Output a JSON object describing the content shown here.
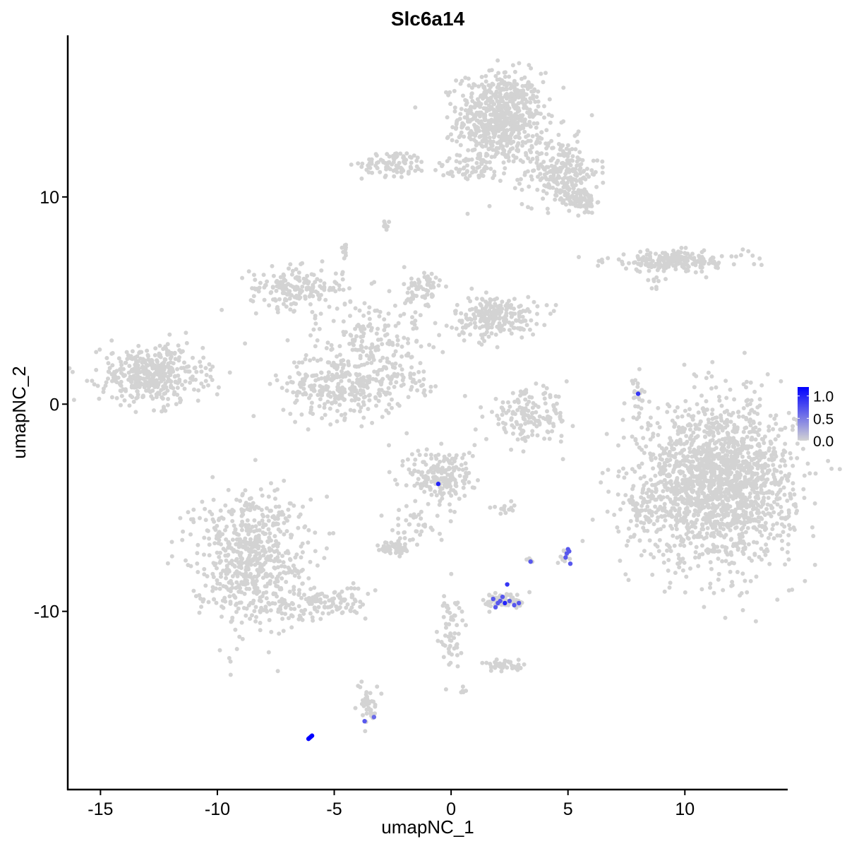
{
  "chart_data": {
    "type": "scatter",
    "title": "Slc6a14",
    "xlabel": "umapNC_1",
    "ylabel": "umapNC_2",
    "xlim": [
      -16.4,
      14.4
    ],
    "ylim": [
      -18.6,
      17.8
    ],
    "xticks": [
      -15,
      -10,
      -5,
      0,
      5,
      10
    ],
    "xtick_labels": [
      "-15",
      "-10",
      "-5",
      "0",
      "5",
      "10"
    ],
    "yticks": [
      -10,
      0,
      10
    ],
    "ytick_labels": [
      "-10",
      "0",
      "10"
    ],
    "grid": false,
    "legend": {
      "placement": "right",
      "type": "colorbar",
      "range": [
        0,
        1.2
      ],
      "ticks": [
        0,
        0.5,
        1.0
      ],
      "tick_labels": [
        "0.0",
        "0.5",
        "1.0"
      ],
      "low_color": "#d3d3d3",
      "high_color": "#0000ff"
    },
    "point_color_default": "#d3d3d3",
    "clusters": [
      {
        "center": [
          2.1,
          13.8
        ],
        "spread": [
          0.9,
          1.1
        ],
        "count": 700,
        "value": 0
      },
      {
        "center": [
          4.7,
          11.2
        ],
        "spread": [
          0.8,
          0.8
        ],
        "count": 250,
        "value": 0
      },
      {
        "center": [
          5.6,
          9.8
        ],
        "spread": [
          0.3,
          0.3
        ],
        "count": 80,
        "value": 0
      },
      {
        "center": [
          0.8,
          11.4
        ],
        "spread": [
          0.9,
          0.3
        ],
        "count": 60,
        "value": 0
      },
      {
        "center": [
          -2.4,
          11.6
        ],
        "spread": [
          0.7,
          0.3
        ],
        "count": 90,
        "value": 0
      },
      {
        "center": [
          -2.8,
          8.6
        ],
        "spread": [
          0.1,
          0.1
        ],
        "count": 8,
        "value": 0
      },
      {
        "center": [
          -4.6,
          7.5
        ],
        "spread": [
          0.1,
          0.2
        ],
        "count": 10,
        "value": 0
      },
      {
        "center": [
          -6.6,
          5.6
        ],
        "spread": [
          1.0,
          0.5
        ],
        "count": 180,
        "value": 0
      },
      {
        "center": [
          -4.6,
          0.9
        ],
        "spread": [
          1.3,
          0.8
        ],
        "count": 320,
        "value": 0
      },
      {
        "center": [
          -3.4,
          3.3
        ],
        "spread": [
          1.2,
          0.9
        ],
        "count": 150,
        "value": 0
      },
      {
        "center": [
          -1.2,
          5.5
        ],
        "spread": [
          0.4,
          0.6
        ],
        "count": 70,
        "value": 0
      },
      {
        "center": [
          1.9,
          4.2
        ],
        "spread": [
          0.9,
          0.5
        ],
        "count": 230,
        "value": 0
      },
      {
        "center": [
          -1.8,
          1.2
        ],
        "spread": [
          0.6,
          0.3
        ],
        "count": 30,
        "value": 0
      },
      {
        "center": [
          -12.8,
          1.4
        ],
        "spread": [
          1.1,
          0.7
        ],
        "count": 420,
        "value": 0
      },
      {
        "center": [
          9.6,
          6.9
        ],
        "spread": [
          1.5,
          0.25
        ],
        "count": 200,
        "value": 0
      },
      {
        "center": [
          8.7,
          6.0
        ],
        "spread": [
          0.2,
          0.2
        ],
        "count": 10,
        "value": 0
      },
      {
        "center": [
          3.3,
          -0.6
        ],
        "spread": [
          0.9,
          0.6
        ],
        "count": 160,
        "value": 0
      },
      {
        "center": [
          8.0,
          0.2
        ],
        "spread": [
          0.15,
          0.5
        ],
        "count": 25,
        "value": 0
      },
      {
        "center": [
          11.4,
          -3.8
        ],
        "spread": [
          1.6,
          1.9
        ],
        "count": 1800,
        "value": 0
      },
      {
        "center": [
          8.3,
          -5.0
        ],
        "spread": [
          0.3,
          0.8
        ],
        "count": 60,
        "value": 0
      },
      {
        "center": [
          -0.4,
          -3.5
        ],
        "spread": [
          0.7,
          0.7
        ],
        "count": 200,
        "value": 0
      },
      {
        "center": [
          -1.5,
          -5.8
        ],
        "spread": [
          0.6,
          0.5
        ],
        "count": 40,
        "value": 0
      },
      {
        "center": [
          2.4,
          -5.0
        ],
        "spread": [
          0.3,
          0.15
        ],
        "count": 15,
        "value": 0
      },
      {
        "center": [
          -8.6,
          -7.4
        ],
        "spread": [
          1.2,
          1.6
        ],
        "count": 650,
        "value": 0
      },
      {
        "center": [
          -5.6,
          -9.6
        ],
        "spread": [
          1.0,
          0.4
        ],
        "count": 120,
        "value": 0
      },
      {
        "center": [
          -2.4,
          -6.9
        ],
        "spread": [
          0.35,
          0.2
        ],
        "count": 50,
        "value": 0
      },
      {
        "center": [
          2.3,
          -9.5
        ],
        "spread": [
          0.45,
          0.2
        ],
        "count": 70,
        "value": 0
      },
      {
        "center": [
          3.4,
          -7.6
        ],
        "spread": [
          0.1,
          0.1
        ],
        "count": 5,
        "value": 0
      },
      {
        "center": [
          4.9,
          -7.3
        ],
        "spread": [
          0.15,
          0.2
        ],
        "count": 10,
        "value": 0
      },
      {
        "center": [
          0.0,
          -11.0
        ],
        "spread": [
          0.3,
          1.0
        ],
        "count": 60,
        "value": 0
      },
      {
        "center": [
          2.2,
          -12.6
        ],
        "spread": [
          0.5,
          0.15
        ],
        "count": 40,
        "value": 0
      },
      {
        "center": [
          0.5,
          -13.8
        ],
        "spread": [
          0.1,
          0.1
        ],
        "count": 5,
        "value": 0
      },
      {
        "center": [
          -3.5,
          -14.5
        ],
        "spread": [
          0.2,
          0.5
        ],
        "count": 40,
        "value": 0
      }
    ],
    "expressing_cells": [
      {
        "x": -6.05,
        "y": -16.1,
        "value": 1.2
      },
      {
        "x": -6.0,
        "y": -16.05,
        "value": 1.2
      },
      {
        "x": -5.95,
        "y": -16.0,
        "value": 1.2
      },
      {
        "x": -6.1,
        "y": -16.15,
        "value": 1.2
      },
      {
        "x": -3.7,
        "y": -15.3,
        "value": 0.7
      },
      {
        "x": -3.3,
        "y": -15.1,
        "value": 0.6
      },
      {
        "x": -0.55,
        "y": -3.85,
        "value": 1.0
      },
      {
        "x": 8.0,
        "y": 0.5,
        "value": 0.9
      },
      {
        "x": 2.4,
        "y": -8.7,
        "value": 0.9
      },
      {
        "x": 2.3,
        "y": -9.6,
        "value": 1.0
      },
      {
        "x": 1.8,
        "y": -9.4,
        "value": 0.7
      },
      {
        "x": 1.9,
        "y": -9.8,
        "value": 0.7
      },
      {
        "x": 2.1,
        "y": -9.5,
        "value": 0.7
      },
      {
        "x": 2.2,
        "y": -9.3,
        "value": 0.7
      },
      {
        "x": 2.5,
        "y": -9.5,
        "value": 0.7
      },
      {
        "x": 2.7,
        "y": -9.7,
        "value": 0.7
      },
      {
        "x": 2.9,
        "y": -9.6,
        "value": 0.7
      },
      {
        "x": 2.0,
        "y": -9.6,
        "value": 0.7
      },
      {
        "x": 3.4,
        "y": -7.6,
        "value": 0.7
      },
      {
        "x": 5.0,
        "y": -7.0,
        "value": 0.7
      },
      {
        "x": 4.95,
        "y": -7.2,
        "value": 0.7
      },
      {
        "x": 4.9,
        "y": -7.4,
        "value": 0.7
      },
      {
        "x": 5.1,
        "y": -7.7,
        "value": 0.7
      },
      {
        "x": 5.05,
        "y": -7.1,
        "value": 0.7
      }
    ]
  }
}
